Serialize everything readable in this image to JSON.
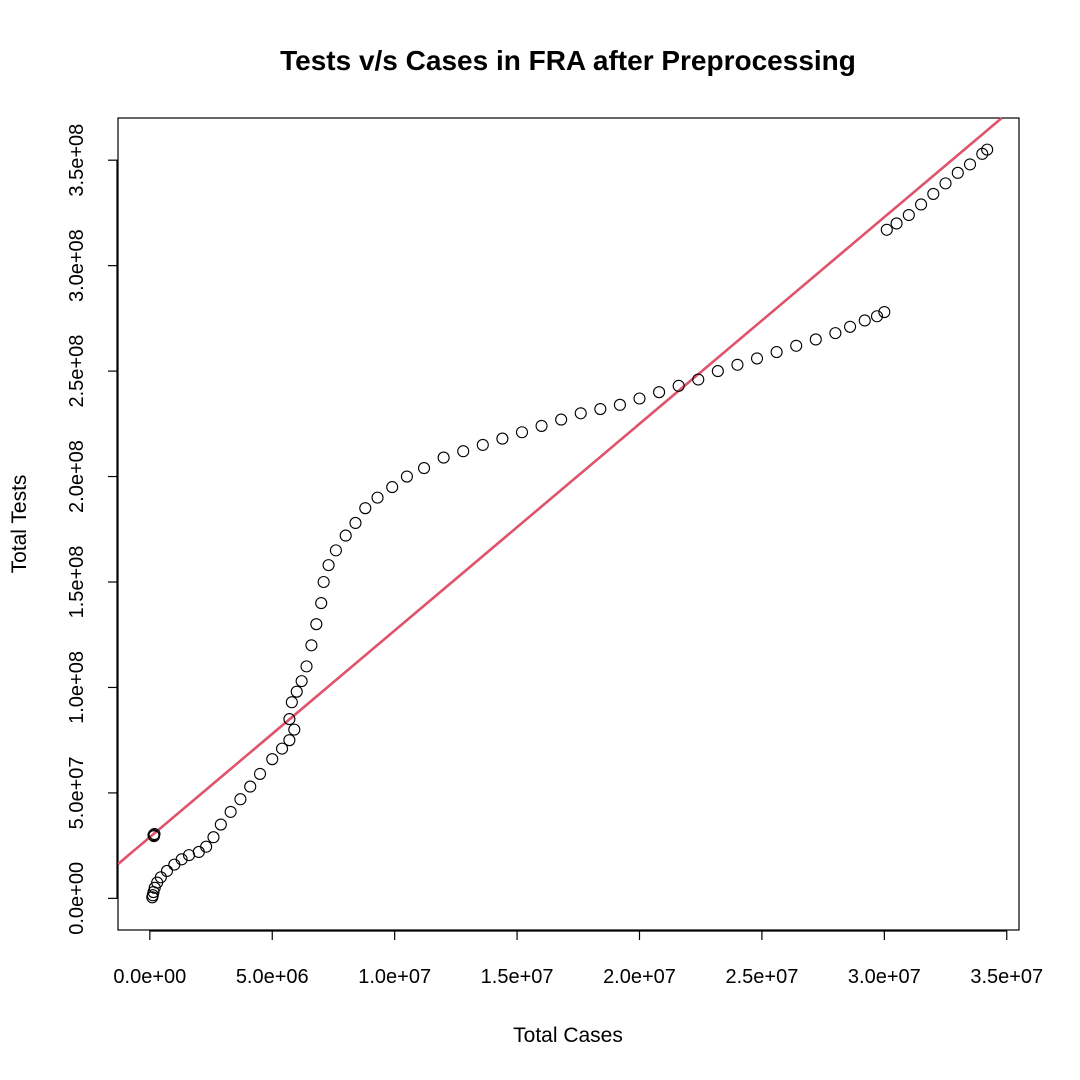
{
  "chart_data": {
    "type": "scatter",
    "title": "Tests v/s Cases in FRA after Preprocessing",
    "xlabel": "Total Cases",
    "ylabel": "Total Tests",
    "xlim": [
      -1300000,
      35500000
    ],
    "ylim": [
      -15000000,
      370000000
    ],
    "x_ticks": [
      0,
      5000000,
      10000000,
      15000000,
      20000000,
      25000000,
      30000000,
      35000000
    ],
    "x_tick_labels": [
      "0.0e+00",
      "5.0e+06",
      "1.0e+07",
      "1.5e+07",
      "2.0e+07",
      "2.5e+07",
      "3.0e+07",
      "3.5e+07"
    ],
    "y_ticks": [
      0,
      50000000,
      100000000,
      150000000,
      200000000,
      250000000,
      300000000,
      350000000
    ],
    "y_tick_labels": [
      "0.0e+00",
      "5.0e+07",
      "1.0e+08",
      "1.5e+08",
      "2.0e+08",
      "2.5e+08",
      "3.0e+08",
      "3.5e+08"
    ],
    "grid": false,
    "point_color": "#000000",
    "fit_color": "#DF536B",
    "series": [
      {
        "type": "scatter",
        "marker": "open-circle",
        "points": [
          [
            150000,
            30000000
          ],
          [
            170000,
            29500000
          ],
          [
            190000,
            30500000
          ],
          [
            100000,
            500000
          ],
          [
            120000,
            1500000
          ],
          [
            150000,
            3000000
          ],
          [
            200000,
            5000000
          ],
          [
            300000,
            7500000
          ],
          [
            450000,
            10000000
          ],
          [
            700000,
            13000000
          ],
          [
            1000000,
            16000000
          ],
          [
            1300000,
            18500000
          ],
          [
            1600000,
            20500000
          ],
          [
            2000000,
            22000000
          ],
          [
            2300000,
            24500000
          ],
          [
            2600000,
            29000000
          ],
          [
            2900000,
            35000000
          ],
          [
            3300000,
            41000000
          ],
          [
            3700000,
            47000000
          ],
          [
            4100000,
            53000000
          ],
          [
            4500000,
            59000000
          ],
          [
            5000000,
            66000000
          ],
          [
            5400000,
            71000000
          ],
          [
            5700000,
            75000000
          ],
          [
            5900000,
            80000000
          ],
          [
            5700000,
            85000000
          ],
          [
            5800000,
            93000000
          ],
          [
            6000000,
            98000000
          ],
          [
            6200000,
            103000000
          ],
          [
            6400000,
            110000000
          ],
          [
            6600000,
            120000000
          ],
          [
            6800000,
            130000000
          ],
          [
            7000000,
            140000000
          ],
          [
            7100000,
            150000000
          ],
          [
            7300000,
            158000000
          ],
          [
            7600000,
            165000000
          ],
          [
            8000000,
            172000000
          ],
          [
            8400000,
            178000000
          ],
          [
            8800000,
            185000000
          ],
          [
            9300000,
            190000000
          ],
          [
            9900000,
            195000000
          ],
          [
            10500000,
            200000000
          ],
          [
            11200000,
            204000000
          ],
          [
            12000000,
            209000000
          ],
          [
            12800000,
            212000000
          ],
          [
            13600000,
            215000000
          ],
          [
            14400000,
            218000000
          ],
          [
            15200000,
            221000000
          ],
          [
            16000000,
            224000000
          ],
          [
            16800000,
            227000000
          ],
          [
            17600000,
            230000000
          ],
          [
            18400000,
            232000000
          ],
          [
            19200000,
            234000000
          ],
          [
            20000000,
            237000000
          ],
          [
            20800000,
            240000000
          ],
          [
            21600000,
            243000000
          ],
          [
            22400000,
            246000000
          ],
          [
            23200000,
            250000000
          ],
          [
            24000000,
            253000000
          ],
          [
            24800000,
            256000000
          ],
          [
            25600000,
            259000000
          ],
          [
            26400000,
            262000000
          ],
          [
            27200000,
            265000000
          ],
          [
            28000000,
            268000000
          ],
          [
            28600000,
            271000000
          ],
          [
            29200000,
            274000000
          ],
          [
            29700000,
            276000000
          ],
          [
            30000000,
            278000000
          ],
          [
            30100000,
            317000000
          ],
          [
            30500000,
            320000000
          ],
          [
            31000000,
            324000000
          ],
          [
            31500000,
            329000000
          ],
          [
            32000000,
            334000000
          ],
          [
            32500000,
            339000000
          ],
          [
            33000000,
            344000000
          ],
          [
            33500000,
            348000000
          ],
          [
            34000000,
            353000000
          ],
          [
            34200000,
            355000000
          ]
        ]
      }
    ],
    "fit_line": {
      "type": "line",
      "intercept": 29000000,
      "slope": 9.8
    }
  }
}
